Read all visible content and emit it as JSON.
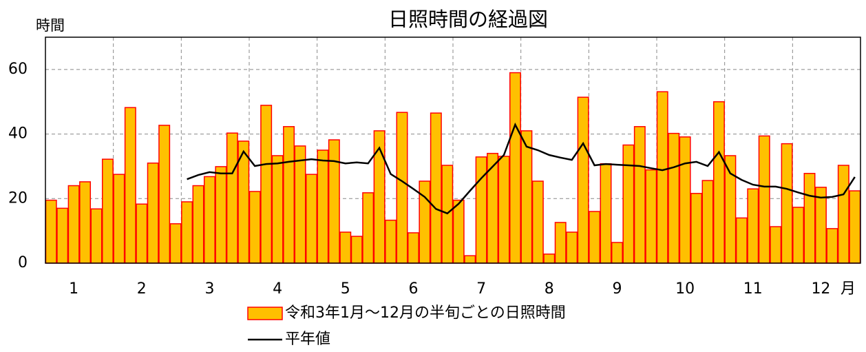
{
  "chart_data": {
    "type": "bar",
    "title": "日照時間の経過図",
    "y_label": "時間",
    "x_label": "月",
    "categories": [
      null,
      null,
      "1",
      null,
      null,
      null,
      null,
      null,
      "2",
      null,
      null,
      null,
      null,
      null,
      "3",
      null,
      null,
      null,
      null,
      null,
      "4",
      null,
      null,
      null,
      null,
      null,
      "5",
      null,
      null,
      null,
      null,
      null,
      "6",
      null,
      null,
      null,
      null,
      null,
      "7",
      null,
      null,
      null,
      null,
      null,
      "8",
      null,
      null,
      null,
      null,
      null,
      "9",
      null,
      null,
      null,
      null,
      null,
      "10",
      null,
      null,
      null,
      null,
      null,
      "11",
      null,
      null,
      null,
      null,
      null,
      "12",
      null,
      null,
      null
    ],
    "series": [
      {
        "name": "令和3年1月～12月の半旬ごとの日照時間",
        "type": "bar",
        "color": "#ffc000",
        "edge_color": "#ff0000",
        "values": [
          19.5,
          17,
          24,
          25.2,
          16.8,
          32.2,
          27.5,
          48.2,
          18.3,
          31,
          42.7,
          12.2,
          19,
          24,
          26.8,
          29.9,
          40.3,
          37.8,
          22.2,
          48.9,
          33.3,
          42.3,
          36.3,
          27.5,
          35,
          38.2,
          9.6,
          8.3,
          21.8,
          41,
          13.3,
          46.7,
          9.4,
          25.4,
          46.5,
          30.3,
          19.5,
          2.3,
          32.9,
          34,
          33.1,
          59,
          41,
          25.4,
          2.8,
          12.6,
          9.6,
          51.4,
          16,
          30.8,
          6.4,
          36.6,
          42.3,
          28.9,
          53.1,
          40.2,
          39.1,
          21.6,
          25.6,
          50,
          33.3,
          14,
          23,
          39.4,
          11.3,
          37,
          17.3,
          27.8,
          23.5,
          10.7,
          30.3,
          22.4
        ]
      },
      {
        "name": "平年値",
        "type": "line",
        "color": "#000000",
        "values": [
          null,
          null,
          null,
          null,
          null,
          null,
          null,
          null,
          null,
          null,
          null,
          null,
          26,
          27.3,
          28.2,
          27.8,
          27.8,
          34.6,
          30.1,
          30.7,
          30.9,
          31.4,
          31.8,
          32.2,
          31.8,
          31.6,
          30.9,
          31.2,
          30.9,
          35.7,
          27.6,
          25.4,
          23,
          20.5,
          16.8,
          15.4,
          18.4,
          22.4,
          26.3,
          29.9,
          33.5,
          42.9,
          36.1,
          35,
          33.5,
          32.7,
          32,
          37.1,
          30.3,
          30.7,
          30.5,
          30.3,
          30.1,
          29.4,
          28.8,
          29.7,
          30.9,
          31.4,
          30.1,
          34.4,
          27.8,
          25.8,
          24.3,
          23.7,
          23.7,
          23,
          21.9,
          20.9,
          20.3,
          20.5,
          21.3,
          26.7
        ]
      }
    ],
    "ylim": [
      0,
      70
    ],
    "yticks": [
      0,
      20,
      40,
      60
    ],
    "grid": true,
    "legend": "bottom"
  }
}
